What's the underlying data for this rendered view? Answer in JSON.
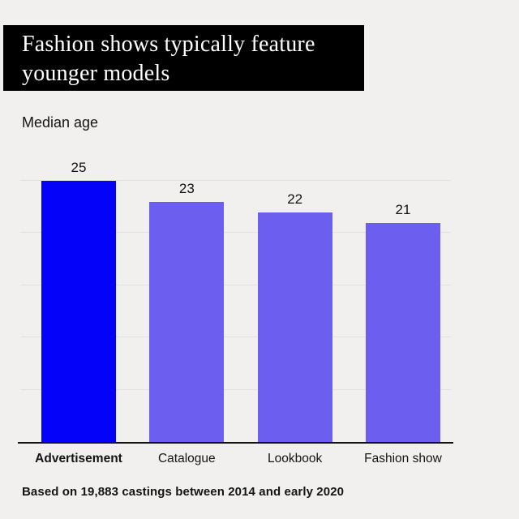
{
  "header": {
    "title_lines": [
      "Fashion shows typically feature",
      "younger models"
    ],
    "bg_color": "#000000",
    "text_color": "#FFFFFF"
  },
  "labels": {
    "median_age": "Median age",
    "footnote": "Based on 19,883 castings between 2014 and early 2020"
  },
  "chart_data": {
    "type": "bar",
    "title": "Fashion shows typically feature younger models",
    "subtitle": "Median age",
    "categories": [
      "Advertisement",
      "Catalogue",
      "Lookbook",
      "Fashion show"
    ],
    "values": [
      25,
      23,
      22,
      21
    ],
    "xlabel": "",
    "ylabel": "Median age",
    "ylim": [
      0,
      25
    ],
    "gridline_values": [
      5,
      10,
      15,
      20,
      25
    ],
    "grid": true,
    "legend": false,
    "highlight_index": 0,
    "highlight_color": "#0502FA",
    "bar_color": "#6C5FF0",
    "axis_color": "#111111",
    "background_color": "#F1F0EF",
    "footnote": "Based on 19,883 castings between 2014 and early 2020"
  }
}
